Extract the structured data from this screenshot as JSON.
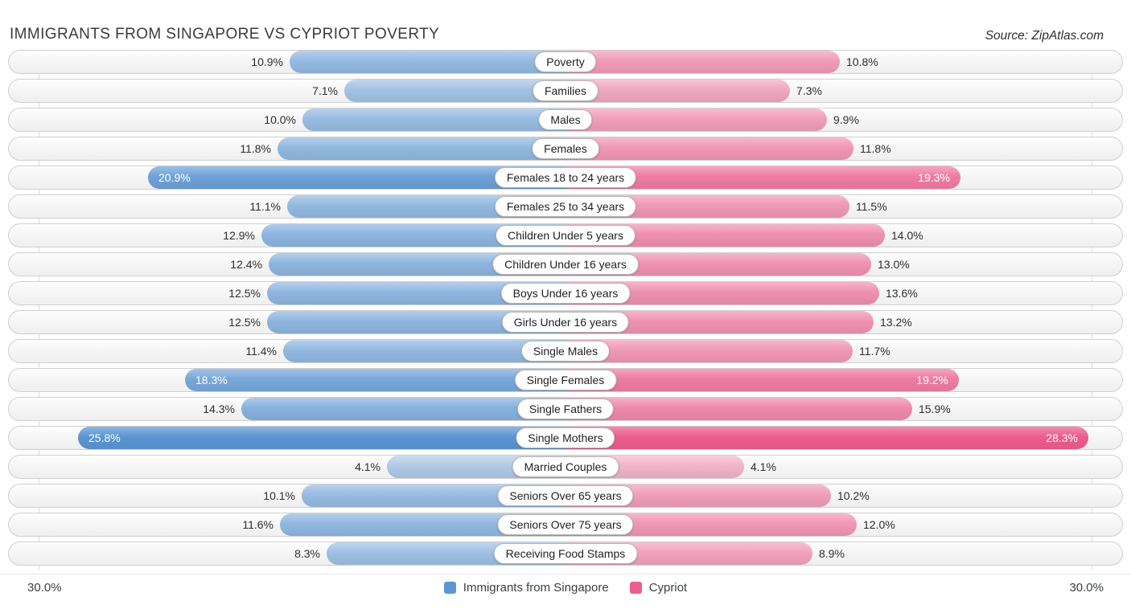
{
  "header": {
    "title": "IMMIGRANTS FROM SINGAPORE VS CYPRIOT POVERTY",
    "source": "Source: ZipAtlas.com"
  },
  "axis": {
    "left_max_label": "30.0%",
    "right_max_label": "30.0%"
  },
  "legend": [
    {
      "label": "Immigrants from Singapore",
      "color": "#5b97d5"
    },
    {
      "label": "Cypriot",
      "color": "#ec5f8d"
    }
  ],
  "colors": {
    "blue_base_rgb": "74,139,207",
    "pink_base_rgb": "235,85,135"
  },
  "chart_data": {
    "type": "bar",
    "subtype": "tornado",
    "title": "IMMIGRANTS FROM SINGAPORE VS CYPRIOT POVERTY",
    "xlim": [
      0,
      30
    ],
    "grid": true,
    "legend_position": "bottom-center",
    "categories": [
      "Poverty",
      "Families",
      "Males",
      "Females",
      "Females 18 to 24 years",
      "Females 25 to 34 years",
      "Children Under 5 years",
      "Children Under 16 years",
      "Boys Under 16 years",
      "Girls Under 16 years",
      "Single Males",
      "Single Females",
      "Single Fathers",
      "Single Mothers",
      "Married Couples",
      "Seniors Over 65 years",
      "Seniors Over 75 years",
      "Receiving Food Stamps"
    ],
    "series": [
      {
        "name": "Immigrants from Singapore",
        "side": "left",
        "values": [
          10.9,
          7.1,
          10.0,
          11.8,
          20.9,
          11.1,
          12.9,
          12.4,
          12.5,
          12.5,
          11.4,
          18.3,
          14.3,
          25.8,
          4.1,
          10.1,
          11.6,
          8.3
        ]
      },
      {
        "name": "Cypriot",
        "side": "right",
        "values": [
          10.8,
          7.3,
          9.9,
          11.8,
          19.3,
          11.5,
          14.0,
          13.0,
          13.6,
          13.2,
          11.7,
          19.2,
          15.9,
          28.3,
          4.1,
          10.2,
          12.0,
          8.9
        ]
      }
    ]
  }
}
